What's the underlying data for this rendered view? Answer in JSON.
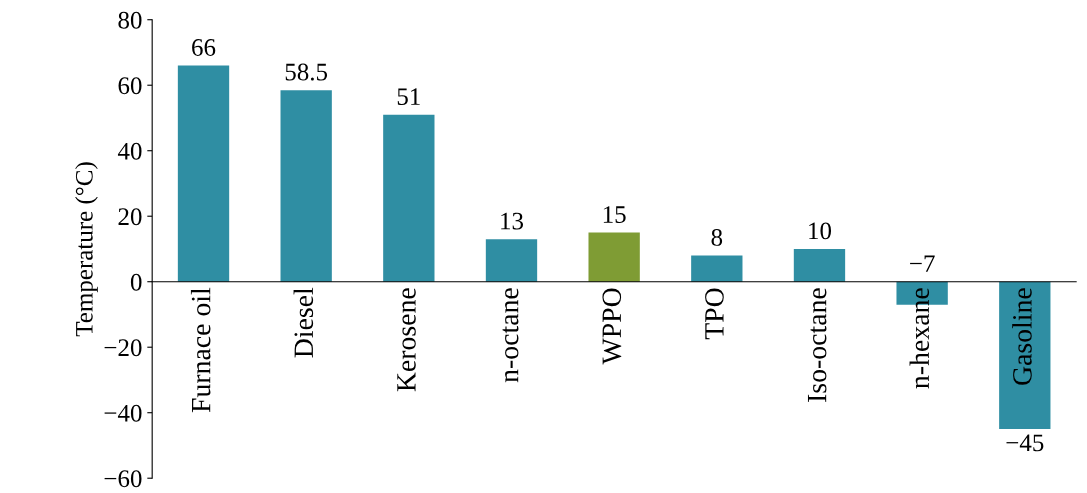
{
  "chart_data": {
    "type": "bar",
    "ylabel": "Temperature (°C)",
    "categories": [
      "Furnace oil",
      "Diesel",
      "Kerosene",
      "n-octane",
      "WPPO",
      "TPO",
      "Iso-octane",
      "n-hexane",
      "Gasoline"
    ],
    "values": [
      66,
      58.5,
      51,
      13,
      15,
      8,
      10,
      -7,
      -45
    ],
    "colors": [
      "#2f8ea3",
      "#2f8ea3",
      "#2f8ea3",
      "#2f8ea3",
      "#7f9c34",
      "#2f8ea3",
      "#2f8ea3",
      "#2f8ea3",
      "#2f8ea3"
    ],
    "value_labels": [
      "66",
      "58.5",
      "51",
      "13",
      "15",
      "8",
      "10",
      "−7",
      "−45"
    ],
    "ylim": [
      -60,
      80
    ],
    "yticks": [
      -60,
      -40,
      -20,
      0,
      20,
      40,
      60,
      80
    ],
    "grid": false
  }
}
